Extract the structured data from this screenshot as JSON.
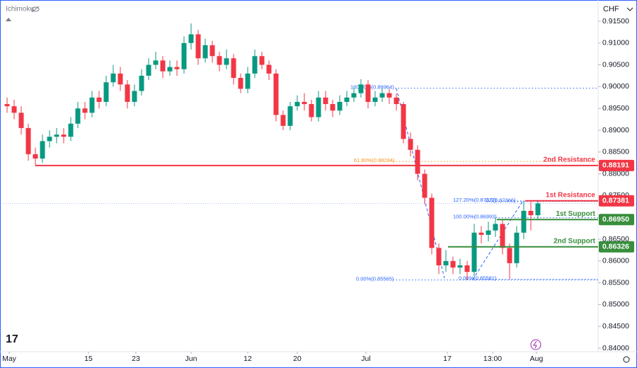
{
  "chart_data": {
    "type": "candlestick",
    "indicator": "Ichimoku",
    "currency": "CHF",
    "up_color": "#089981",
    "down_color": "#f23645",
    "open": [
      0.896,
      0.8955,
      0.894,
      0.8905,
      0.8845,
      0.8835,
      0.8875,
      0.8885,
      0.889,
      0.8885,
      0.8915,
      0.895,
      0.894,
      0.8975,
      0.8965,
      0.901,
      0.903,
      0.9005,
      0.8965,
      0.899,
      0.9025,
      0.905,
      0.906,
      0.9035,
      0.9045,
      0.904,
      0.91,
      0.912,
      0.9065,
      0.9095,
      0.907,
      0.905,
      0.9065,
      0.902,
      0.8995,
      0.903,
      0.907,
      0.905,
      0.903,
      0.8935,
      0.891,
      0.8955,
      0.8965,
      0.896,
      0.893,
      0.8975,
      0.896,
      0.8945,
      0.8965,
      0.8975,
      0.8985,
      0.9005,
      0.8965,
      0.8975,
      0.8985,
      0.8975,
      0.896,
      0.888,
      0.8855,
      0.88,
      0.8745,
      0.863,
      0.859,
      0.86,
      0.8585,
      0.859,
      0.8575,
      0.8665,
      0.866,
      0.867,
      0.8685,
      0.863,
      0.8595,
      0.8665,
      0.8715,
      0.8705
    ],
    "high": [
      0.8975,
      0.897,
      0.8955,
      0.8915,
      0.886,
      0.889,
      0.89,
      0.8905,
      0.8905,
      0.893,
      0.8965,
      0.8965,
      0.899,
      0.899,
      0.9025,
      0.905,
      0.9045,
      0.9015,
      0.9005,
      0.904,
      0.9065,
      0.908,
      0.907,
      0.906,
      0.906,
      0.9115,
      0.9145,
      0.913,
      0.911,
      0.9105,
      0.908,
      0.9085,
      0.9075,
      0.903,
      0.9045,
      0.9085,
      0.908,
      0.906,
      0.904,
      0.8945,
      0.8965,
      0.898,
      0.8985,
      0.897,
      0.899,
      0.899,
      0.897,
      0.898,
      0.899,
      0.9,
      0.9017,
      0.9015,
      0.899,
      0.8996,
      0.8995,
      0.8985,
      0.8965,
      0.8895,
      0.8865,
      0.881,
      0.8755,
      0.864,
      0.8625,
      0.861,
      0.8605,
      0.86,
      0.8685,
      0.868,
      0.869,
      0.8699,
      0.8695,
      0.864,
      0.868,
      0.8737,
      0.8735,
      0.874
    ],
    "low": [
      0.894,
      0.8925,
      0.889,
      0.883,
      0.8819,
      0.8825,
      0.886,
      0.887,
      0.887,
      0.8875,
      0.8905,
      0.8925,
      0.893,
      0.895,
      0.8955,
      0.9,
      0.899,
      0.895,
      0.8955,
      0.898,
      0.9015,
      0.904,
      0.902,
      0.9025,
      0.9025,
      0.903,
      0.9085,
      0.905,
      0.9055,
      0.9055,
      0.9035,
      0.904,
      0.9005,
      0.8985,
      0.8985,
      0.902,
      0.904,
      0.9015,
      0.892,
      0.89,
      0.89,
      0.8945,
      0.8945,
      0.892,
      0.892,
      0.8945,
      0.893,
      0.8935,
      0.8955,
      0.8965,
      0.8975,
      0.895,
      0.8955,
      0.8965,
      0.896,
      0.8945,
      0.887,
      0.884,
      0.8785,
      0.873,
      0.8615,
      0.857,
      0.8575,
      0.857,
      0.857,
      0.8556,
      0.8565,
      0.864,
      0.8645,
      0.8655,
      0.8615,
      0.8558,
      0.8585,
      0.865,
      0.867,
      0.8695
    ],
    "close": [
      0.8955,
      0.894,
      0.8905,
      0.8845,
      0.8835,
      0.8875,
      0.8885,
      0.889,
      0.8885,
      0.8915,
      0.895,
      0.894,
      0.8975,
      0.8965,
      0.901,
      0.903,
      0.9005,
      0.8965,
      0.899,
      0.9025,
      0.905,
      0.906,
      0.9035,
      0.9045,
      0.904,
      0.91,
      0.912,
      0.9065,
      0.9095,
      0.907,
      0.905,
      0.9065,
      0.902,
      0.8995,
      0.903,
      0.907,
      0.905,
      0.903,
      0.8935,
      0.891,
      0.8955,
      0.8965,
      0.896,
      0.893,
      0.8975,
      0.896,
      0.8945,
      0.8965,
      0.8975,
      0.8985,
      0.9005,
      0.8965,
      0.8975,
      0.8985,
      0.8975,
      0.896,
      0.888,
      0.8855,
      0.88,
      0.8745,
      0.863,
      0.859,
      0.86,
      0.8585,
      0.859,
      0.8575,
      0.8665,
      0.866,
      0.867,
      0.8685,
      0.863,
      0.8595,
      0.8665,
      0.8715,
      0.8705,
      0.8732
    ],
    "xlim": [
      -0.5,
      83.5
    ],
    "xticks": [
      {
        "value": 0.3,
        "label": "May"
      },
      {
        "value": 11.5,
        "label": "15"
      },
      {
        "value": 18.2,
        "label": "23"
      },
      {
        "value": 26,
        "label": "Jun"
      },
      {
        "value": 34,
        "label": "12"
      },
      {
        "value": 41,
        "label": "20"
      },
      {
        "value": 50.7,
        "label": "Jul"
      },
      {
        "value": 62.2,
        "label": "17"
      },
      {
        "value": 68.6,
        "label": "13:00"
      },
      {
        "value": 74.8,
        "label": "Aug"
      }
    ],
    "ylim": [
      0.83935,
      0.91987
    ],
    "yticks": [
      {
        "value": 0.915,
        "label": "0.91500"
      },
      {
        "value": 0.91,
        "label": "0.91000"
      },
      {
        "value": 0.905,
        "label": "0.90500"
      },
      {
        "value": 0.9,
        "label": "0.90000"
      },
      {
        "value": 0.895,
        "label": "0.89500"
      },
      {
        "value": 0.89,
        "label": "0.89000"
      },
      {
        "value": 0.885,
        "label": "0.88500"
      },
      {
        "value": 0.88,
        "label": "0.88000"
      },
      {
        "value": 0.875,
        "label": "0.87500"
      },
      {
        "value": 0.87,
        "label": "0.87000"
      },
      {
        "value": 0.865,
        "label": "0.86500"
      },
      {
        "value": 0.86,
        "label": "0.86000"
      },
      {
        "value": 0.855,
        "label": "0.85500"
      },
      {
        "value": 0.85,
        "label": "0.85000"
      },
      {
        "value": 0.845,
        "label": "0.84500"
      },
      {
        "value": 0.84,
        "label": "0.84000"
      }
    ],
    "levels": [
      {
        "name": "2nd Resistance",
        "value": 0.88191,
        "color": "#f23645"
      },
      {
        "name": "1st Resistance",
        "value": 0.87381,
        "color": "#f23645"
      },
      {
        "name": "1st Support",
        "value": 0.8695,
        "value_label": "0.86950",
        "color": "#388e3c"
      },
      {
        "name": "2nd Support",
        "value": 0.86326,
        "color": "#388e3c"
      }
    ],
    "fib_levels": [
      {
        "text": "100.00%(0.89964)",
        "value": 0.89964,
        "color": "#2962ff"
      },
      {
        "text": "61.80%(0.88284)",
        "value": 0.88284,
        "color": "#f7931a"
      },
      {
        "text": "0.00%(0.85565)",
        "value": 0.85565,
        "color": "#2962ff"
      },
      {
        "text": "0.0(0.87366)",
        "value": 0.87366,
        "color": "#2962ff"
      },
      {
        "text": "127.20%(0.87377)",
        "value": 0.87377,
        "color": "#2962ff"
      },
      {
        "text": "100.00%(0.86993)",
        "value": 0.86993,
        "color": "#2962ff"
      },
      {
        "text": "0.00%(0.85581)",
        "value": 0.85581,
        "color": "#2962ff"
      }
    ]
  }
}
